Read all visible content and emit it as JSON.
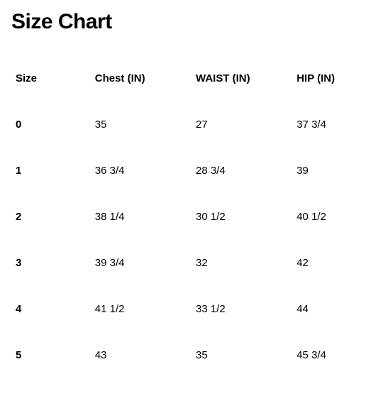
{
  "title": "Size Chart",
  "table": {
    "type": "table",
    "background_color": "#ffffff",
    "text_color": "#000000",
    "header_font_weight": 700,
    "body_font_weight": 400,
    "size_col_font_weight": 700,
    "title_fontsize": 30,
    "cell_fontsize": 15,
    "columns": [
      "Size",
      "Chest (IN)",
      "WAIST (IN)",
      "HIP (IN)"
    ],
    "column_widths": [
      "22%",
      "28%",
      "28%",
      "22%"
    ],
    "rows": [
      [
        "0",
        "35",
        "27",
        "37 3/4"
      ],
      [
        "1",
        "36 3/4",
        "28 3/4",
        "39"
      ],
      [
        "2",
        "38 1/4",
        "30 1/2",
        "40 1/2"
      ],
      [
        "3",
        "39 3/4",
        "32",
        "42"
      ],
      [
        "4",
        "41 1/2",
        "33 1/2",
        "44"
      ],
      [
        "5",
        "43",
        "35",
        "45 3/4"
      ]
    ]
  }
}
